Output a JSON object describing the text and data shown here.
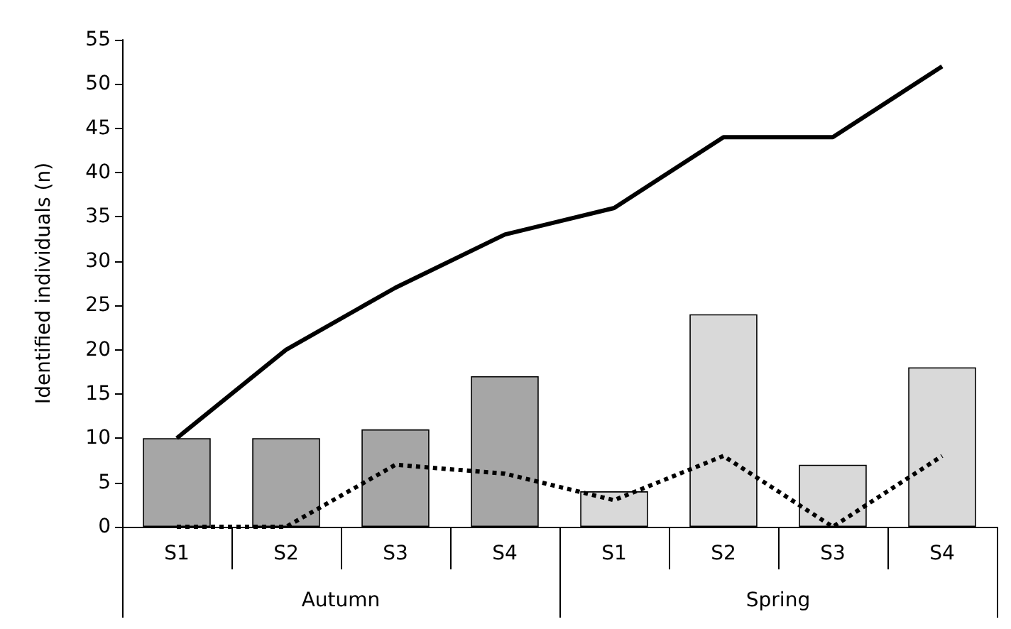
{
  "chart_data": {
    "type": "bar",
    "ylabel": "Identified individuals (n)",
    "categories": [
      "S1",
      "S2",
      "S3",
      "S4",
      "S1",
      "S2",
      "S3",
      "S4"
    ],
    "series": [
      {
        "colors": [
          "#a6a6a6",
          "#a6a6a6",
          "#a6a6a6",
          "#a6a6a6",
          "#d9d9d9",
          "#d9d9d9",
          "#d9d9d9",
          "#d9d9d9"
        ],
        "values": [
          10,
          10,
          11,
          17,
          4,
          24,
          7,
          18
        ]
      },
      {
        "type": "line",
        "color": "#000000",
        "line_style": "solid",
        "values": [
          10,
          20,
          27,
          33,
          36,
          44,
          44,
          52
        ]
      },
      {
        "type": "line",
        "color": "#000000",
        "line_style": "dotted",
        "values": [
          0,
          0,
          7,
          6,
          3,
          8,
          0,
          8
        ]
      }
    ],
    "annotations": [
      "Autumn",
      "Spring"
    ],
    "ylim": [
      0,
      55
    ],
    "yticks": [
      0,
      5,
      10,
      15,
      20,
      25,
      30,
      35,
      40,
      45,
      50,
      55
    ],
    "grid": false
  }
}
